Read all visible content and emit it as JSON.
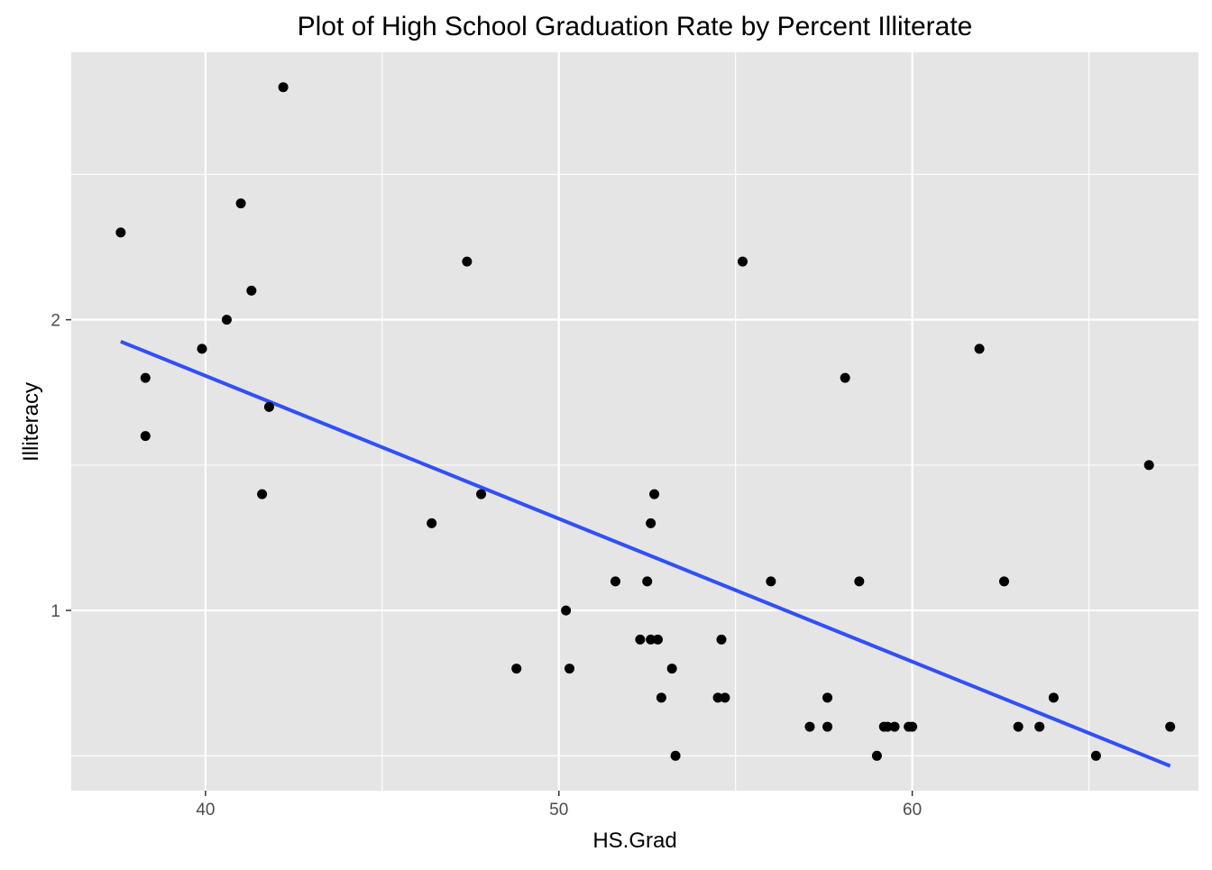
{
  "chart_data": {
    "type": "scatter",
    "title": "Plot of High School Graduation Rate by Percent Illiterate",
    "xlabel": "HS.Grad",
    "ylabel": "Illiteracy",
    "xlim": [
      36.2,
      68.1
    ],
    "ylim": [
      0.38,
      2.92
    ],
    "x_ticks": [
      40,
      50,
      60
    ],
    "x_tick_labels": [
      "40",
      "50",
      "60"
    ],
    "y_ticks": [
      1,
      2
    ],
    "y_tick_labels": [
      "1",
      "2"
    ],
    "x_minor": [
      45,
      55,
      65
    ],
    "y_minor": [
      0.5,
      1.5,
      2.5
    ],
    "grid": true,
    "legend": "none",
    "colors": {
      "panel": "#e5e5e5",
      "grid": "#ffffff",
      "point": "#000000",
      "fit_line": "#3050f8"
    },
    "points": [
      {
        "x": 37.6,
        "y": 2.3
      },
      {
        "x": 38.3,
        "y": 1.8
      },
      {
        "x": 38.3,
        "y": 1.6
      },
      {
        "x": 39.9,
        "y": 1.9
      },
      {
        "x": 40.6,
        "y": 2.0
      },
      {
        "x": 41.0,
        "y": 2.4
      },
      {
        "x": 41.3,
        "y": 2.1
      },
      {
        "x": 41.6,
        "y": 1.4
      },
      {
        "x": 41.8,
        "y": 1.7
      },
      {
        "x": 42.2,
        "y": 2.8
      },
      {
        "x": 46.4,
        "y": 1.3
      },
      {
        "x": 47.4,
        "y": 2.2
      },
      {
        "x": 47.8,
        "y": 1.4
      },
      {
        "x": 48.8,
        "y": 0.8
      },
      {
        "x": 50.2,
        "y": 1.0
      },
      {
        "x": 50.3,
        "y": 0.8
      },
      {
        "x": 51.6,
        "y": 1.1
      },
      {
        "x": 52.3,
        "y": 0.9
      },
      {
        "x": 52.5,
        "y": 1.1
      },
      {
        "x": 52.6,
        "y": 1.3
      },
      {
        "x": 52.6,
        "y": 0.9
      },
      {
        "x": 52.7,
        "y": 1.4
      },
      {
        "x": 52.8,
        "y": 0.9
      },
      {
        "x": 52.9,
        "y": 0.7
      },
      {
        "x": 53.2,
        "y": 0.8
      },
      {
        "x": 53.3,
        "y": 0.5
      },
      {
        "x": 54.5,
        "y": 0.7
      },
      {
        "x": 54.6,
        "y": 0.9
      },
      {
        "x": 54.7,
        "y": 0.7
      },
      {
        "x": 55.2,
        "y": 2.2
      },
      {
        "x": 56.0,
        "y": 1.1
      },
      {
        "x": 57.1,
        "y": 0.6
      },
      {
        "x": 57.6,
        "y": 0.7
      },
      {
        "x": 57.6,
        "y": 0.6
      },
      {
        "x": 58.1,
        "y": 1.8
      },
      {
        "x": 58.5,
        "y": 1.1
      },
      {
        "x": 59.0,
        "y": 0.5
      },
      {
        "x": 59.2,
        "y": 0.6
      },
      {
        "x": 59.3,
        "y": 0.6
      },
      {
        "x": 59.5,
        "y": 0.6
      },
      {
        "x": 59.9,
        "y": 0.6
      },
      {
        "x": 60.0,
        "y": 0.6
      },
      {
        "x": 61.9,
        "y": 1.9
      },
      {
        "x": 62.6,
        "y": 1.1
      },
      {
        "x": 63.0,
        "y": 0.6
      },
      {
        "x": 63.6,
        "y": 0.6
      },
      {
        "x": 64.0,
        "y": 0.7
      },
      {
        "x": 65.2,
        "y": 0.5
      },
      {
        "x": 66.7,
        "y": 1.5
      },
      {
        "x": 67.3,
        "y": 0.6
      }
    ],
    "fit_line": {
      "x": [
        37.6,
        67.3
      ],
      "y": [
        1.925,
        0.465
      ]
    }
  }
}
